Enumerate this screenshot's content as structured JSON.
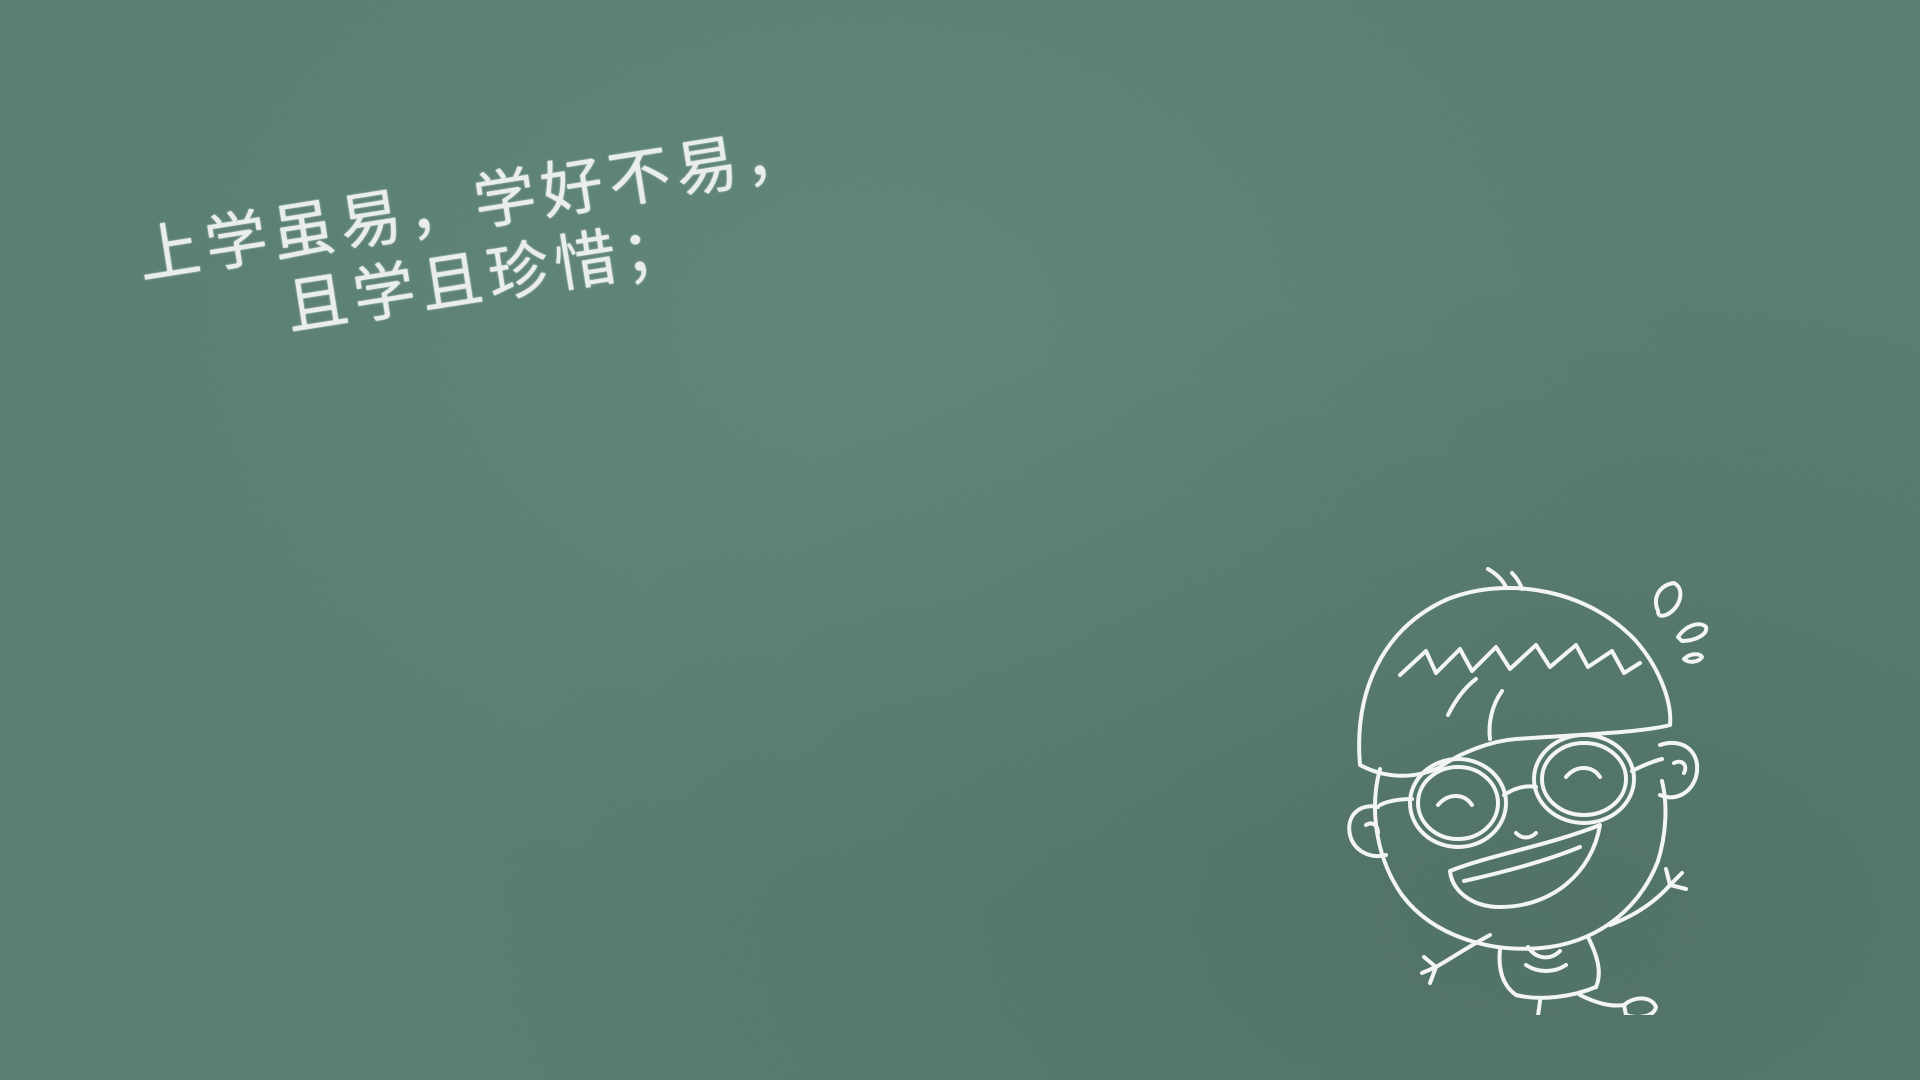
{
  "slide": {
    "background_color": "#557a6e",
    "chalk_color": "#f4f7f4",
    "text_lines": [
      "上学虽易，学好不易，",
      "且学且珍惜；"
    ]
  },
  "illustration": {
    "icon": "cartoon-boy-with-glasses-icon"
  }
}
